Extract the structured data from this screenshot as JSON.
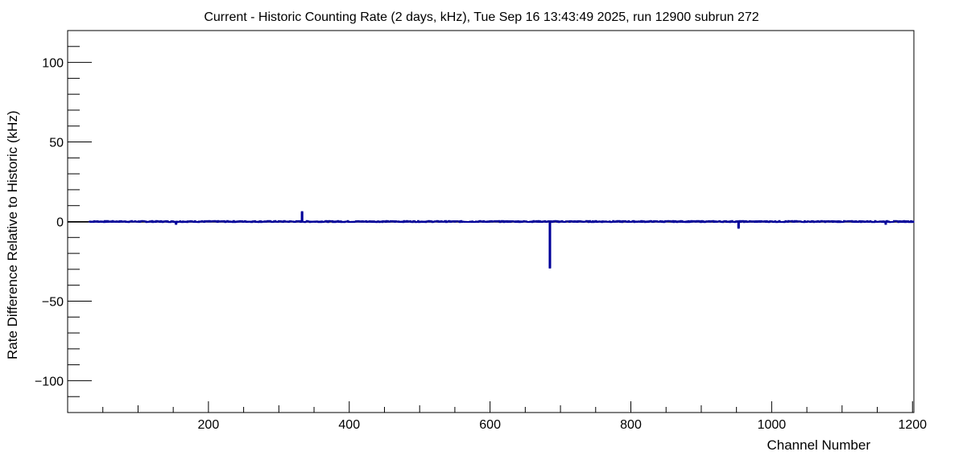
{
  "chart_data": {
    "type": "bar",
    "title": "Current - Historic Counting Rate (2 days, kHz), Tue Sep 16 13:43:49 2025, run 12900 subrun 272",
    "xlabel": "Channel Number",
    "ylabel": "Rate Difference Relative to Historic (kHz)",
    "xlim": [
      0,
      1202
    ],
    "ylim": [
      -120,
      120
    ],
    "x_ticks": [
      200,
      400,
      600,
      800,
      1000,
      1200
    ],
    "x_tick_labels": [
      "200",
      "400",
      "600",
      "800",
      "1000",
      "1200"
    ],
    "y_ticks": [
      -100,
      -50,
      0,
      50,
      100
    ],
    "y_tick_labels": [
      "−100",
      "−50",
      "0",
      "50",
      "100"
    ],
    "grid": false,
    "series": [
      {
        "name": "rate difference",
        "color": "#000099",
        "channel_range": [
          31,
          1202
        ],
        "baseline_value": 0,
        "outliers": [
          {
            "channel": 154,
            "value": -1.5
          },
          {
            "channel": 333,
            "value": 6
          },
          {
            "channel": 685,
            "value": -29
          },
          {
            "channel": 953,
            "value": -4
          },
          {
            "channel": 1162,
            "value": -1.5
          }
        ]
      }
    ]
  }
}
